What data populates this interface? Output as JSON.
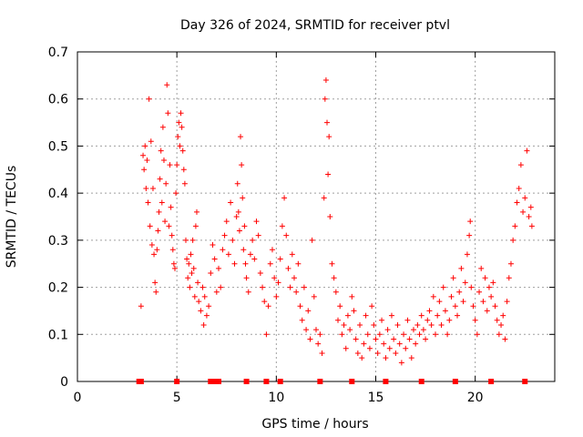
{
  "chart_data": {
    "type": "scatter",
    "title": "Day 326 of 2024, SRMTID for receiver ptvl",
    "xlabel": "GPS time / hours",
    "ylabel": "SRMTID / TECUs",
    "xlim": [
      0,
      24
    ],
    "ylim": [
      0,
      0.7
    ],
    "grid": true,
    "x_ticks": [
      0,
      5,
      10,
      15,
      20
    ],
    "y_ticks": [
      0,
      0.1,
      0.2,
      0.3,
      0.4,
      0.5,
      0.6,
      0.7
    ],
    "x_tick_labels": [
      "0",
      "5",
      "10",
      "15",
      "20"
    ],
    "y_tick_labels": [
      "0",
      "0.1",
      "0.2",
      "0.3",
      "0.4",
      "0.5",
      "0.6",
      "0.7"
    ],
    "marker_color": "#ff0000",
    "series": [
      {
        "name": "SRMTID",
        "points": [
          [
            3.2,
            0.16
          ],
          [
            3.3,
            0.48
          ],
          [
            3.35,
            0.45
          ],
          [
            3.4,
            0.5
          ],
          [
            3.45,
            0.41
          ],
          [
            3.5,
            0.47
          ],
          [
            3.55,
            0.38
          ],
          [
            3.6,
            0.6
          ],
          [
            3.65,
            0.33
          ],
          [
            3.7,
            0.51
          ],
          [
            3.75,
            0.29
          ],
          [
            3.8,
            0.41
          ],
          [
            3.85,
            0.27
          ],
          [
            3.9,
            0.21
          ],
          [
            3.95,
            0.19
          ],
          [
            4.0,
            0.28
          ],
          [
            4.05,
            0.32
          ],
          [
            4.1,
            0.36
          ],
          [
            4.15,
            0.43
          ],
          [
            4.2,
            0.49
          ],
          [
            4.25,
            0.38
          ],
          [
            4.3,
            0.54
          ],
          [
            4.35,
            0.47
          ],
          [
            4.4,
            0.34
          ],
          [
            4.45,
            0.42
          ],
          [
            4.5,
            0.63
          ],
          [
            4.55,
            0.57
          ],
          [
            4.6,
            0.33
          ],
          [
            4.65,
            0.46
          ],
          [
            4.7,
            0.37
          ],
          [
            4.75,
            0.31
          ],
          [
            4.8,
            0.28
          ],
          [
            4.85,
            0.25
          ],
          [
            4.9,
            0.24
          ],
          [
            4.95,
            0.4
          ],
          [
            5.0,
            0.46
          ],
          [
            5.05,
            0.52
          ],
          [
            5.1,
            0.55
          ],
          [
            5.15,
            0.5
          ],
          [
            5.2,
            0.57
          ],
          [
            5.25,
            0.54
          ],
          [
            5.3,
            0.49
          ],
          [
            5.35,
            0.45
          ],
          [
            5.4,
            0.42
          ],
          [
            5.45,
            0.3
          ],
          [
            5.5,
            0.26
          ],
          [
            5.55,
            0.22
          ],
          [
            5.6,
            0.25
          ],
          [
            5.65,
            0.2
          ],
          [
            5.7,
            0.27
          ],
          [
            5.75,
            0.23
          ],
          [
            5.8,
            0.3
          ],
          [
            5.85,
            0.24
          ],
          [
            5.9,
            0.18
          ],
          [
            5.95,
            0.33
          ],
          [
            6.0,
            0.36
          ],
          [
            6.05,
            0.21
          ],
          [
            6.1,
            0.17
          ],
          [
            6.2,
            0.15
          ],
          [
            6.3,
            0.2
          ],
          [
            6.35,
            0.12
          ],
          [
            6.4,
            0.18
          ],
          [
            6.5,
            0.14
          ],
          [
            6.6,
            0.16
          ],
          [
            6.7,
            0.23
          ],
          [
            6.8,
            0.29
          ],
          [
            6.9,
            0.26
          ],
          [
            7.0,
            0.19
          ],
          [
            7.1,
            0.24
          ],
          [
            7.2,
            0.2
          ],
          [
            7.3,
            0.28
          ],
          [
            7.4,
            0.31
          ],
          [
            7.5,
            0.34
          ],
          [
            7.6,
            0.27
          ],
          [
            7.7,
            0.38
          ],
          [
            7.8,
            0.3
          ],
          [
            7.9,
            0.25
          ],
          [
            8.0,
            0.35
          ],
          [
            8.05,
            0.42
          ],
          [
            8.1,
            0.36
          ],
          [
            8.15,
            0.32
          ],
          [
            8.2,
            0.52
          ],
          [
            8.25,
            0.46
          ],
          [
            8.3,
            0.39
          ],
          [
            8.35,
            0.28
          ],
          [
            8.4,
            0.33
          ],
          [
            8.45,
            0.25
          ],
          [
            8.5,
            0.22
          ],
          [
            8.6,
            0.19
          ],
          [
            8.7,
            0.27
          ],
          [
            8.8,
            0.3
          ],
          [
            8.9,
            0.26
          ],
          [
            9.0,
            0.34
          ],
          [
            9.1,
            0.31
          ],
          [
            9.2,
            0.23
          ],
          [
            9.3,
            0.2
          ],
          [
            9.4,
            0.17
          ],
          [
            9.5,
            0.1
          ],
          [
            9.6,
            0.16
          ],
          [
            9.7,
            0.25
          ],
          [
            9.8,
            0.28
          ],
          [
            9.9,
            0.22
          ],
          [
            10.0,
            0.18
          ],
          [
            10.1,
            0.21
          ],
          [
            10.2,
            0.26
          ],
          [
            10.3,
            0.33
          ],
          [
            10.4,
            0.39
          ],
          [
            10.5,
            0.31
          ],
          [
            10.6,
            0.24
          ],
          [
            10.7,
            0.2
          ],
          [
            10.8,
            0.27
          ],
          [
            10.9,
            0.22
          ],
          [
            11.0,
            0.19
          ],
          [
            11.1,
            0.25
          ],
          [
            11.2,
            0.16
          ],
          [
            11.3,
            0.13
          ],
          [
            11.4,
            0.2
          ],
          [
            11.5,
            0.11
          ],
          [
            11.6,
            0.15
          ],
          [
            11.7,
            0.09
          ],
          [
            11.8,
            0.3
          ],
          [
            11.9,
            0.18
          ],
          [
            12.0,
            0.11
          ],
          [
            12.1,
            0.08
          ],
          [
            12.2,
            0.1
          ],
          [
            12.3,
            0.06
          ],
          [
            12.4,
            0.39
          ],
          [
            12.45,
            0.6
          ],
          [
            12.5,
            0.64
          ],
          [
            12.55,
            0.55
          ],
          [
            12.6,
            0.44
          ],
          [
            12.65,
            0.52
          ],
          [
            12.7,
            0.35
          ],
          [
            12.8,
            0.25
          ],
          [
            12.9,
            0.22
          ],
          [
            13.0,
            0.19
          ],
          [
            13.1,
            0.13
          ],
          [
            13.2,
            0.16
          ],
          [
            13.3,
            0.1
          ],
          [
            13.4,
            0.12
          ],
          [
            13.5,
            0.07
          ],
          [
            13.6,
            0.14
          ],
          [
            13.7,
            0.11
          ],
          [
            13.8,
            0.18
          ],
          [
            13.9,
            0.15
          ],
          [
            14.0,
            0.09
          ],
          [
            14.1,
            0.06
          ],
          [
            14.2,
            0.12
          ],
          [
            14.3,
            0.05
          ],
          [
            14.4,
            0.08
          ],
          [
            14.5,
            0.14
          ],
          [
            14.6,
            0.1
          ],
          [
            14.7,
            0.07
          ],
          [
            14.8,
            0.16
          ],
          [
            14.9,
            0.12
          ],
          [
            15.0,
            0.09
          ],
          [
            15.1,
            0.06
          ],
          [
            15.2,
            0.1
          ],
          [
            15.3,
            0.13
          ],
          [
            15.4,
            0.08
          ],
          [
            15.5,
            0.05
          ],
          [
            15.6,
            0.11
          ],
          [
            15.7,
            0.07
          ],
          [
            15.8,
            0.14
          ],
          [
            15.9,
            0.09
          ],
          [
            16.0,
            0.06
          ],
          [
            16.1,
            0.12
          ],
          [
            16.2,
            0.08
          ],
          [
            16.3,
            0.04
          ],
          [
            16.4,
            0.1
          ],
          [
            16.5,
            0.07
          ],
          [
            16.6,
            0.13
          ],
          [
            16.7,
            0.09
          ],
          [
            16.8,
            0.05
          ],
          [
            16.9,
            0.11
          ],
          [
            17.0,
            0.08
          ],
          [
            17.1,
            0.12
          ],
          [
            17.2,
            0.1
          ],
          [
            17.3,
            0.14
          ],
          [
            17.4,
            0.11
          ],
          [
            17.5,
            0.09
          ],
          [
            17.6,
            0.13
          ],
          [
            17.7,
            0.15
          ],
          [
            17.8,
            0.12
          ],
          [
            17.9,
            0.18
          ],
          [
            18.0,
            0.1
          ],
          [
            18.1,
            0.14
          ],
          [
            18.2,
            0.17
          ],
          [
            18.3,
            0.12
          ],
          [
            18.4,
            0.2
          ],
          [
            18.5,
            0.15
          ],
          [
            18.6,
            0.1
          ],
          [
            18.7,
            0.13
          ],
          [
            18.8,
            0.18
          ],
          [
            18.9,
            0.22
          ],
          [
            19.0,
            0.16
          ],
          [
            19.1,
            0.14
          ],
          [
            19.2,
            0.19
          ],
          [
            19.3,
            0.24
          ],
          [
            19.4,
            0.17
          ],
          [
            19.5,
            0.21
          ],
          [
            19.6,
            0.27
          ],
          [
            19.7,
            0.31
          ],
          [
            19.75,
            0.34
          ],
          [
            19.8,
            0.2
          ],
          [
            19.9,
            0.16
          ],
          [
            20.0,
            0.13
          ],
          [
            20.1,
            0.1
          ],
          [
            20.2,
            0.19
          ],
          [
            20.3,
            0.24
          ],
          [
            20.4,
            0.17
          ],
          [
            20.5,
            0.22
          ],
          [
            20.6,
            0.15
          ],
          [
            20.7,
            0.2
          ],
          [
            20.8,
            0.18
          ],
          [
            20.9,
            0.21
          ],
          [
            21.0,
            0.16
          ],
          [
            21.1,
            0.13
          ],
          [
            21.2,
            0.1
          ],
          [
            21.3,
            0.12
          ],
          [
            21.4,
            0.14
          ],
          [
            21.5,
            0.09
          ],
          [
            21.6,
            0.17
          ],
          [
            21.7,
            0.22
          ],
          [
            21.8,
            0.25
          ],
          [
            21.9,
            0.3
          ],
          [
            22.0,
            0.33
          ],
          [
            22.1,
            0.38
          ],
          [
            22.2,
            0.41
          ],
          [
            22.3,
            0.46
          ],
          [
            22.4,
            0.36
          ],
          [
            22.5,
            0.39
          ],
          [
            22.6,
            0.49
          ],
          [
            22.7,
            0.35
          ],
          [
            22.8,
            0.37
          ],
          [
            22.85,
            0.33
          ]
        ]
      }
    ],
    "gap_markers": [
      3.1,
      3.2,
      5.0,
      6.7,
      6.85,
      7.1,
      8.5,
      9.5,
      10.2,
      12.2,
      13.8,
      15.5,
      17.3,
      19.0,
      20.8,
      22.5
    ]
  }
}
